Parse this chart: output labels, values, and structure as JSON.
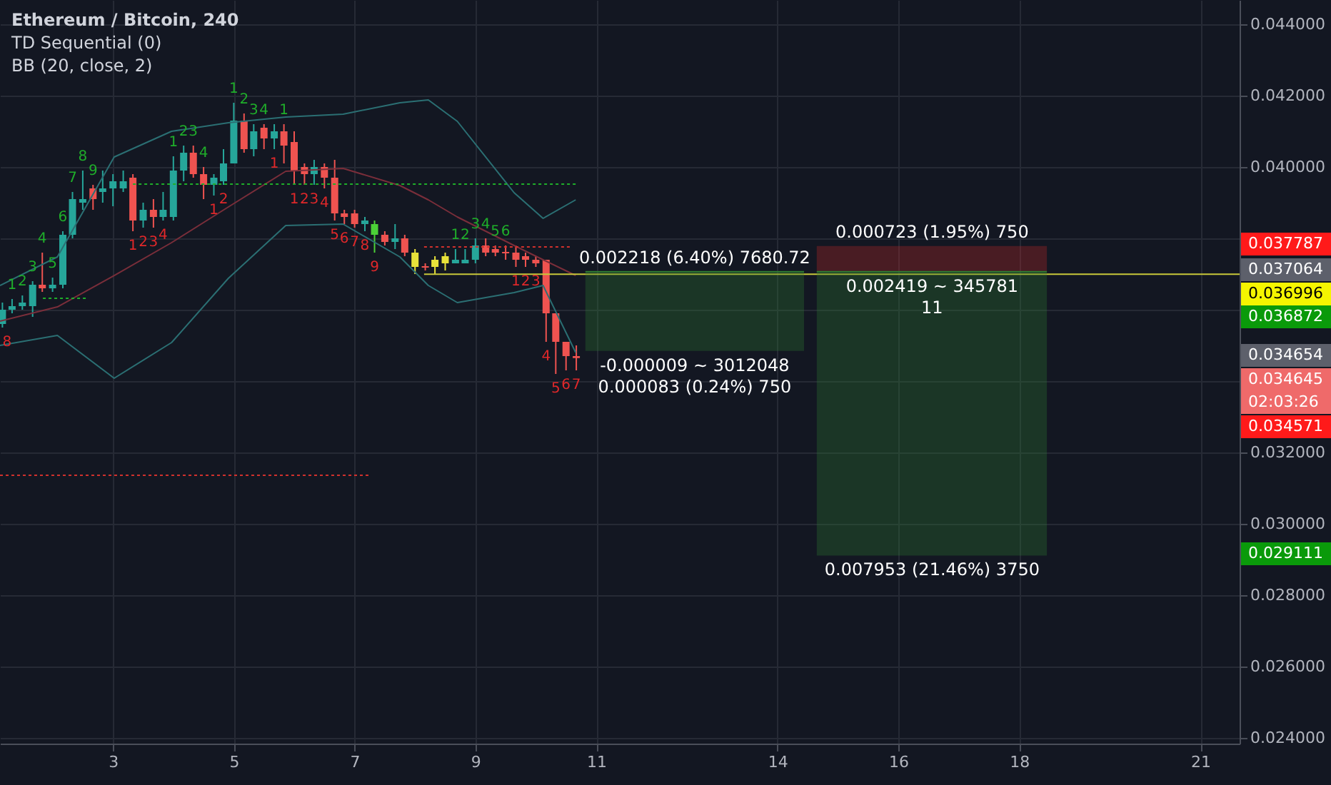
{
  "chart_data": {
    "type": "candlestick",
    "title": "Ethereum / Bitcoin, 240",
    "x": [
      1.17,
      1.33,
      1.5,
      1.67,
      1.83,
      2.0,
      2.17,
      2.33,
      2.5,
      2.67,
      2.83,
      3.0,
      3.17,
      3.33,
      3.5,
      3.67,
      3.83,
      4.0,
      4.17,
      4.33,
      4.5,
      4.67,
      4.83,
      5.0,
      5.17,
      5.33,
      5.5,
      5.67,
      5.83,
      6.0,
      6.17,
      6.33,
      6.5,
      6.67,
      6.83,
      7.0,
      7.17,
      7.33,
      7.5,
      7.67,
      7.83,
      8.0,
      8.17,
      8.33,
      8.5,
      8.67,
      8.83,
      9.0,
      9.17,
      9.33,
      9.5,
      9.67,
      9.83,
      10.0,
      10.17,
      10.33,
      10.5,
      10.67
    ],
    "ohlc": [
      [
        0.0356,
        0.0362,
        0.0355,
        0.036
      ],
      [
        0.036,
        0.0363,
        0.0359,
        0.0361
      ],
      [
        0.0361,
        0.0364,
        0.036,
        0.0362
      ],
      [
        0.0361,
        0.0368,
        0.0358,
        0.0367
      ],
      [
        0.0367,
        0.0376,
        0.0365,
        0.0366
      ],
      [
        0.0366,
        0.0369,
        0.0365,
        0.0367
      ],
      [
        0.0367,
        0.0382,
        0.0366,
        0.0381
      ],
      [
        0.0381,
        0.0393,
        0.038,
        0.0391
      ],
      [
        0.039,
        0.0399,
        0.0388,
        0.0391
      ],
      [
        0.0394,
        0.0395,
        0.0388,
        0.0391
      ],
      [
        0.0393,
        0.0399,
        0.039,
        0.0394
      ],
      [
        0.0394,
        0.0398,
        0.0389,
        0.0396
      ],
      [
        0.0394,
        0.0399,
        0.0393,
        0.0396
      ],
      [
        0.0397,
        0.0398,
        0.0382,
        0.0385
      ],
      [
        0.0385,
        0.039,
        0.0383,
        0.0388
      ],
      [
        0.0388,
        0.0391,
        0.0383,
        0.0386
      ],
      [
        0.0386,
        0.0393,
        0.0385,
        0.0388
      ],
      [
        0.0386,
        0.0403,
        0.0385,
        0.0399
      ],
      [
        0.0399,
        0.0406,
        0.0396,
        0.0404
      ],
      [
        0.0404,
        0.0406,
        0.0397,
        0.0398
      ],
      [
        0.0398,
        0.04,
        0.0391,
        0.0395
      ],
      [
        0.0395,
        0.0398,
        0.0392,
        0.0397
      ],
      [
        0.0396,
        0.0405,
        0.0395,
        0.0401
      ],
      [
        0.0401,
        0.0418,
        0.0401,
        0.0413
      ],
      [
        0.0413,
        0.0415,
        0.0404,
        0.0405
      ],
      [
        0.0405,
        0.0412,
        0.0403,
        0.041
      ],
      [
        0.0411,
        0.0412,
        0.0405,
        0.0408
      ],
      [
        0.0408,
        0.0412,
        0.0405,
        0.041
      ],
      [
        0.041,
        0.0412,
        0.0401,
        0.0406
      ],
      [
        0.0407,
        0.041,
        0.0395,
        0.0399
      ],
      [
        0.04,
        0.0401,
        0.0395,
        0.0398
      ],
      [
        0.0398,
        0.0402,
        0.0395,
        0.04
      ],
      [
        0.04,
        0.0401,
        0.0394,
        0.0397
      ],
      [
        0.0397,
        0.0402,
        0.0385,
        0.0387
      ],
      [
        0.0387,
        0.0388,
        0.0384,
        0.0386
      ],
      [
        0.0387,
        0.0388,
        0.0383,
        0.0384
      ],
      [
        0.0384,
        0.0386,
        0.0382,
        0.0385
      ],
      [
        0.0381,
        0.0385,
        0.0376,
        0.0384
      ],
      [
        0.0381,
        0.0382,
        0.0378,
        0.0379
      ],
      [
        0.0379,
        0.0384,
        0.0377,
        0.038
      ],
      [
        0.038,
        0.0381,
        0.0375,
        0.0376
      ],
      [
        0.0376,
        0.0377,
        0.037,
        0.0372
      ],
      [
        0.03722,
        0.0373,
        0.0371,
        0.03718
      ],
      [
        0.0372,
        0.0375,
        0.037,
        0.0374
      ],
      [
        0.0373,
        0.0376,
        0.0371,
        0.0375
      ],
      [
        0.0373,
        0.0377,
        0.0373,
        0.0374
      ],
      [
        0.0373,
        0.0377,
        0.0373,
        0.0374
      ],
      [
        0.0374,
        0.038,
        0.0373,
        0.0378
      ],
      [
        0.0378,
        0.038,
        0.0375,
        0.0376
      ],
      [
        0.0377,
        0.0378,
        0.0375,
        0.0376
      ],
      [
        0.03762,
        0.0378,
        0.0374,
        0.03758
      ],
      [
        0.0376,
        0.0378,
        0.0372,
        0.0374
      ],
      [
        0.0375,
        0.0376,
        0.0372,
        0.0374
      ],
      [
        0.0374,
        0.0375,
        0.0372,
        0.0373
      ],
      [
        0.0374,
        0.0374,
        0.0351,
        0.0359
      ],
      [
        0.0359,
        0.0359,
        0.0342,
        0.0351
      ],
      [
        0.0351,
        0.0351,
        0.0343,
        0.0347
      ],
      [
        0.0347,
        0.035,
        0.0343,
        0.034645
      ]
    ],
    "colors": [
      "#26a69a",
      "#26a69a",
      "#26a69a",
      "#26a69a",
      "#ef5350",
      "#26a69a",
      "#26a69a",
      "#26a69a",
      "#26a69a",
      "#ef5350",
      "#26a69a",
      "#26a69a",
      "#26a69a",
      "#ef5350",
      "#26a69a",
      "#ef5350",
      "#26a69a",
      "#26a69a",
      "#26a69a",
      "#ef5350",
      "#ef5350",
      "#26a69a",
      "#26a69a",
      "#26a69a",
      "#ef5350",
      "#26a69a",
      "#ef5350",
      "#26a69a",
      "#ef5350",
      "#ef5350",
      "#ef5350",
      "#26a69a",
      "#ef5350",
      "#ef5350",
      "#ef5350",
      "#ef5350",
      "#26a69a",
      "#4cd137",
      "#ef5350",
      "#26a69a",
      "#ef5350",
      "#e8e23a",
      "#ef5350",
      "#e8e23a",
      "#e8e23a",
      "#26a69a",
      "#26a69a",
      "#26a69a",
      "#ef5350",
      "#ef5350",
      "#ef5350",
      "#ef5350",
      "#ef5350",
      "#ef5350",
      "#ef5350",
      "#ef5350",
      "#ef5350",
      "#ef5350"
    ],
    "series": [
      {
        "type": "line",
        "color": "#2b6f73",
        "x": [
          1.13,
          2.08,
          3.02,
          3.97,
          4.91,
          5.86,
          6.81,
          7.75,
          8.22,
          8.7,
          9.64,
          10.12,
          10.66
        ],
        "values": [
          0.03668,
          0.03748,
          0.04028,
          0.041,
          0.04124,
          0.0414,
          0.04148,
          0.0418,
          0.04188,
          0.04128,
          0.03928,
          0.03856,
          0.03908
        ]
      },
      {
        "type": "line",
        "color": "#7a2e3a",
        "x": [
          1.13,
          2.08,
          3.02,
          3.97,
          4.91,
          5.86,
          6.81,
          7.75,
          8.22,
          8.7,
          9.64,
          10.12,
          10.66
        ],
        "values": [
          0.03568,
          0.03608,
          0.03696,
          0.03788,
          0.03888,
          0.03988,
          0.03996,
          0.03948,
          0.03908,
          0.0386,
          0.0378,
          0.0374,
          0.03696
        ]
      },
      {
        "type": "line",
        "color": "#2b6f73",
        "x": [
          1.13,
          2.08,
          3.02,
          3.97,
          4.91,
          5.86,
          6.81,
          7.75,
          8.22,
          8.7,
          9.64,
          10.12,
          10.66
        ],
        "values": [
          0.035,
          0.03528,
          0.03408,
          0.03508,
          0.03688,
          0.03836,
          0.0384,
          0.03748,
          0.03668,
          0.0362,
          0.03648,
          0.03668,
          0.0348
        ]
      },
      {
        "type": "line",
        "color": "#1fae2a",
        "line_style": "dotted",
        "x": [
          1.84,
          2.55
        ],
        "values": [
          0.03632,
          0.03632
        ]
      },
      {
        "type": "line",
        "color": "#1fae2a",
        "line_style": "dotted",
        "x": [
          3.33,
          10.66
        ],
        "values": [
          0.03952,
          0.03952
        ]
      },
      {
        "type": "line",
        "color": "#d0312d",
        "line_style": "dotted",
        "x": [
          8.15,
          10.59
        ],
        "values": [
          0.03776,
          0.03776
        ]
      },
      {
        "type": "line",
        "color": "#d0312d",
        "line_style": "dotted",
        "x": [
          1.13,
          7.23
        ],
        "values": [
          0.03136,
          0.03136
        ]
      },
      {
        "type": "line",
        "color": "#c8c83a",
        "x": [
          8.15,
          21.65
        ],
        "values": [
          0.036996,
          0.036996
        ]
      },
      {
        "type": "line",
        "color": "#2e7d32",
        "x": [
          10.82,
          14.44
        ],
        "values": [
          0.037064,
          0.037064
        ],
        "lower": [
          0.034846,
          0.034846
        ],
        "upper": [
          0.037064,
          0.037064
        ]
      },
      {
        "type": "line",
        "color": "#c62828",
        "x": [
          14.65,
          18.46
        ],
        "values": [
          null,
          null
        ],
        "lower": [
          0.037064,
          0.037064
        ],
        "upper": [
          0.037787,
          0.037787
        ]
      },
      {
        "type": "line",
        "color": "#2e7d32",
        "x": [
          14.65,
          18.46
        ],
        "values": [
          0.037064,
          0.037064
        ],
        "lower": [
          0.029111,
          0.029111
        ],
        "upper": [
          0.037064,
          0.037064
        ]
      }
    ],
    "annotations": [
      "TD Sequential (0)",
      "BB (20, close, 2)",
      "0.037787",
      "0.037064",
      "0.036996",
      "0.036872",
      "0.034654",
      "0.034645",
      "02:03:26",
      "0.034571",
      "0.029111",
      {
        "text": "0.002218 (6.40%) 7680.72",
        "x": 12.63,
        "y": 0.037064
      },
      {
        "text": "-0.000009 ~ 3012048",
        "x": 12.63,
        "y": 0.034846
      },
      {
        "text": "0.000083 (0.24%) 750",
        "x": 12.63,
        "y": 0.034846
      },
      {
        "text": "0.000723 (1.95%) 750",
        "x": 16.56,
        "y": 0.037787
      },
      {
        "text": "0.002419 ~ 345781",
        "x": 16.56,
        "y": 0.037064
      },
      {
        "text": "11",
        "x": 16.56,
        "y": 0.037064
      },
      {
        "text": "0.007953 (21.46%) 3750",
        "x": 16.56,
        "y": 0.029111
      },
      {
        "text": "1",
        "x": 1.33,
        "y": 0.0363
      },
      {
        "text": "2",
        "x": 1.5,
        "y": 0.0364
      },
      {
        "text": "3",
        "x": 1.67,
        "y": 0.0368
      },
      {
        "text": "4",
        "x": 1.83,
        "y": 0.0376
      },
      {
        "text": "5",
        "x": 2.0,
        "y": 0.0369
      },
      {
        "text": "6",
        "x": 2.17,
        "y": 0.0382
      },
      {
        "text": "7",
        "x": 2.33,
        "y": 0.0393
      },
      {
        "text": "8",
        "x": 2.5,
        "y": 0.0399
      },
      {
        "text": "9",
        "x": 2.67,
        "y": 0.0395
      },
      {
        "text": "1",
        "x": 4.0,
        "y": 0.0403
      },
      {
        "text": "2",
        "x": 4.17,
        "y": 0.0406
      },
      {
        "text": "3",
        "x": 4.33,
        "y": 0.0406
      },
      {
        "text": "4",
        "x": 4.5,
        "y": 0.04
      },
      {
        "text": "1",
        "x": 5.0,
        "y": 0.0418
      },
      {
        "text": "2",
        "x": 5.17,
        "y": 0.0415
      },
      {
        "text": "3",
        "x": 5.33,
        "y": 0.0412
      },
      {
        "text": "4",
        "x": 5.5,
        "y": 0.0412
      },
      {
        "text": "1",
        "x": 5.83,
        "y": 0.0412
      },
      {
        "text": "1",
        "x": 8.67,
        "y": 0.0377
      },
      {
        "text": "2",
        "x": 8.83,
        "y": 0.0377
      },
      {
        "text": "3",
        "x": 9.0,
        "y": 0.038
      },
      {
        "text": "4",
        "x": 9.17,
        "y": 0.038
      },
      {
        "text": "5",
        "x": 9.33,
        "y": 0.0378
      },
      {
        "text": "6",
        "x": 9.5,
        "y": 0.0378
      },
      {
        "text": "8",
        "x": 1.17,
        "y": 0.0355
      },
      {
        "text": "1",
        "x": 3.33,
        "y": 0.0382
      },
      {
        "text": "2",
        "x": 3.5,
        "y": 0.0383
      },
      {
        "text": "3",
        "x": 3.67,
        "y": 0.0383
      },
      {
        "text": "4",
        "x": 3.83,
        "y": 0.0385
      },
      {
        "text": "1",
        "x": 4.67,
        "y": 0.0392
      },
      {
        "text": "2",
        "x": 4.83,
        "y": 0.0395
      },
      {
        "text": "1",
        "x": 5.67,
        "y": 0.0405
      },
      {
        "text": "1",
        "x": 6.0,
        "y": 0.0395
      },
      {
        "text": "2",
        "x": 6.17,
        "y": 0.0395
      },
      {
        "text": "3",
        "x": 6.33,
        "y": 0.0395
      },
      {
        "text": "4",
        "x": 6.5,
        "y": 0.0394
      },
      {
        "text": "5",
        "x": 6.67,
        "y": 0.0385
      },
      {
        "text": "6",
        "x": 6.83,
        "y": 0.0384
      },
      {
        "text": "7",
        "x": 7.0,
        "y": 0.0383
      },
      {
        "text": "8",
        "x": 7.17,
        "y": 0.0382
      },
      {
        "text": "9",
        "x": 7.33,
        "y": 0.0376
      },
      {
        "text": "1",
        "x": 9.67,
        "y": 0.0372
      },
      {
        "text": "2",
        "x": 9.83,
        "y": 0.0372
      },
      {
        "text": "3",
        "x": 10.0,
        "y": 0.0372
      },
      {
        "text": "4",
        "x": 10.17,
        "y": 0.0351
      },
      {
        "text": "5",
        "x": 10.33,
        "y": 0.0342
      },
      {
        "text": "6",
        "x": 10.5,
        "y": 0.0343
      },
      {
        "text": "7",
        "x": 10.67,
        "y": 0.0343
      }
    ],
    "xlim": [
      1.13,
      21.65
    ],
    "ylim": [
      0.02384,
      0.04468
    ],
    "xticks": [
      3,
      5,
      7,
      9,
      11,
      14,
      16,
      18,
      21
    ],
    "yticks": [
      {
        "value": 0.024,
        "label": "0.024000"
      },
      {
        "value": 0.026,
        "label": "0.026000"
      },
      {
        "value": 0.028,
        "label": "0.028000"
      },
      {
        "value": 0.03,
        "label": "0.030000"
      },
      {
        "value": 0.032,
        "label": "0.032000"
      },
      {
        "value": 0.034,
        "label": null
      },
      {
        "value": 0.036,
        "label": null
      },
      {
        "value": 0.038,
        "label": null
      },
      {
        "value": 0.04,
        "label": "0.040000"
      },
      {
        "value": 0.042,
        "label": "0.042000"
      },
      {
        "value": 0.044,
        "label": "0.044000"
      }
    ],
    "grid": true
  }
}
